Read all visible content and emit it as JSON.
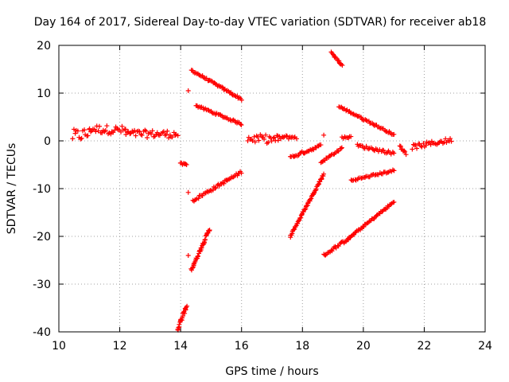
{
  "chart_data": {
    "type": "scatter",
    "title": "Day 164 of 2017, Sidereal Day-to-day VTEC variation (SDTVAR) for receiver ab18",
    "xlabel": "GPS time / hours",
    "ylabel": "SDTVAR / TECUs",
    "xlim": [
      10,
      24
    ],
    "ylim": [
      -40,
      20
    ],
    "xticks": [
      "10",
      "12",
      "14",
      "16",
      "18",
      "20",
      "22",
      "24"
    ],
    "yticks": [
      "-40",
      "-30",
      "-20",
      "-10",
      "0",
      "10",
      "20"
    ],
    "grid": true,
    "marker": "+",
    "color": "#ff0000",
    "segments": [
      {
        "x0": 10.45,
        "y0": 1.0,
        "x1": 11.0,
        "y1": 1.5,
        "jitter": 1.4
      },
      {
        "x0": 11.0,
        "y0": 2.5,
        "x1": 12.2,
        "y1": 2.2,
        "jitter": 0.9
      },
      {
        "x0": 12.2,
        "y0": 1.5,
        "x1": 13.9,
        "y1": 1.4,
        "jitter": 0.8
      },
      {
        "x0": 14.0,
        "y0": -4.8,
        "x1": 14.2,
        "y1": -5.0,
        "jitter": 0.2
      },
      {
        "x0": 14.35,
        "y0": 14.8,
        "x1": 16.0,
        "y1": 8.7,
        "jitter": 0.2
      },
      {
        "x0": 14.5,
        "y0": 7.4,
        "x1": 16.0,
        "y1": 3.5,
        "jitter": 0.2
      },
      {
        "x0": 14.4,
        "y0": -12.5,
        "x1": 16.0,
        "y1": -6.5,
        "jitter": 0.3
      },
      {
        "x0": 14.35,
        "y0": -27.0,
        "x1": 14.95,
        "y1": -18.5,
        "jitter": 0.3
      },
      {
        "x0": 13.9,
        "y0": -39.5,
        "x1": 14.2,
        "y1": -34.5,
        "jitter": 0.4
      },
      {
        "x0": 16.2,
        "y0": 0.5,
        "x1": 17.2,
        "y1": 0.3,
        "jitter": 0.9
      },
      {
        "x0": 17.2,
        "y0": 0.7,
        "x1": 17.8,
        "y1": 0.8,
        "jitter": 0.4
      },
      {
        "x0": 17.6,
        "y0": -3.5,
        "x1": 18.6,
        "y1": -1.0,
        "jitter": 0.3
      },
      {
        "x0": 17.6,
        "y0": -20.0,
        "x1": 18.7,
        "y1": -7.0,
        "jitter": 0.2
      },
      {
        "x0": 18.6,
        "y0": -4.5,
        "x1": 19.3,
        "y1": -1.5,
        "jitter": 0.2
      },
      {
        "x0": 19.3,
        "y0": 0.7,
        "x1": 19.6,
        "y1": 0.8,
        "jitter": 0.2
      },
      {
        "x0": 18.7,
        "y0": -24.0,
        "x1": 19.5,
        "y1": -20.5,
        "jitter": 0.3
      },
      {
        "x0": 19.5,
        "y0": -20.5,
        "x1": 21.0,
        "y1": -12.8,
        "jitter": 0.2
      },
      {
        "x0": 19.6,
        "y0": -8.3,
        "x1": 21.0,
        "y1": -6.2,
        "jitter": 0.2
      },
      {
        "x0": 18.95,
        "y0": 18.5,
        "x1": 19.3,
        "y1": 15.8,
        "jitter": 0.2
      },
      {
        "x0": 19.2,
        "y0": 7.2,
        "x1": 21.0,
        "y1": 1.3,
        "jitter": 0.2
      },
      {
        "x0": 19.8,
        "y0": -1.0,
        "x1": 21.0,
        "y1": -2.6,
        "jitter": 0.3
      },
      {
        "x0": 21.2,
        "y0": -1.0,
        "x1": 21.4,
        "y1": -2.5,
        "jitter": 0.5
      },
      {
        "x0": 21.6,
        "y0": -1.3,
        "x1": 22.9,
        "y1": 0.2,
        "jitter": 0.5
      }
    ],
    "points": [
      {
        "x": 14.25,
        "y": 10.5
      },
      {
        "x": 14.25,
        "y": -10.8
      },
      {
        "x": 14.25,
        "y": -24.0
      },
      {
        "x": 18.7,
        "y": 1.2
      }
    ]
  }
}
